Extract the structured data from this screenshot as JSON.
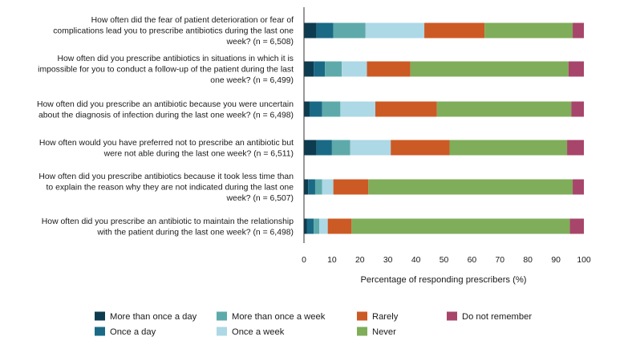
{
  "chart_data": {
    "type": "bar",
    "orientation": "horizontal",
    "stacked": true,
    "title": "",
    "xlabel": "Percentage of responding prescribers (%)",
    "ylabel": "",
    "xlim": [
      0,
      100
    ],
    "xticks": [
      0,
      10,
      20,
      30,
      40,
      50,
      60,
      70,
      80,
      90,
      100
    ],
    "grid": false,
    "legend_position": "bottom",
    "categories": [
      [
        "How often did the fear of patient deterioration or fear of",
        "complications lead you to prescribe antibiotics during the last one",
        "week? (n = 6,508)"
      ],
      [
        "How often did you prescribe antibiotics in situations in which it is",
        "impossible for you to conduct a follow-up of the patient during the last",
        "one week? (n = 6,499)"
      ],
      [
        "How often did you prescribe an antibiotic because you were uncertain",
        "about the diagnosis of infection during the last one week? (n = 6,498)"
      ],
      [
        "How often would you have preferred not to prescribe an antibiotic but",
        "were not able during the last one week? (n = 6,511)"
      ],
      [
        "How often did you prescribe antibiotics because it took less time than",
        "to explain the reason why they are not indicated during the last one",
        "week? (n = 6,507)"
      ],
      [
        "How often did you prescribe an antibiotic to maintain the relationship",
        "with the patient during the last one week? (n = 6,498)"
      ]
    ],
    "series": [
      {
        "name": "More than once a day",
        "color": "#0d3c50",
        "values": [
          4.5,
          3.5,
          2.0,
          4.5,
          1.5,
          1.0
        ]
      },
      {
        "name": "Once a day",
        "color": "#1a6a85",
        "values": [
          6.0,
          4.0,
          4.5,
          5.5,
          2.5,
          2.5
        ]
      },
      {
        "name": "More than once a week",
        "color": "#5eaaaa",
        "values": [
          11.5,
          6.0,
          6.5,
          6.5,
          2.5,
          2.0
        ]
      },
      {
        "name": "Once a week",
        "color": "#add8e6",
        "values": [
          21.0,
          9.0,
          12.5,
          14.5,
          4.0,
          3.0
        ]
      },
      {
        "name": "Rarely",
        "color": "#cc5a25",
        "values": [
          21.5,
          15.5,
          22.0,
          21.0,
          12.5,
          8.5
        ]
      },
      {
        "name": "Never",
        "color": "#7fad5a",
        "values": [
          31.5,
          56.5,
          48.0,
          42.0,
          73.0,
          78.0
        ]
      },
      {
        "name": "Do not remember",
        "color": "#a8456a",
        "values": [
          4.0,
          5.5,
          4.5,
          6.0,
          4.0,
          5.0
        ]
      }
    ]
  }
}
